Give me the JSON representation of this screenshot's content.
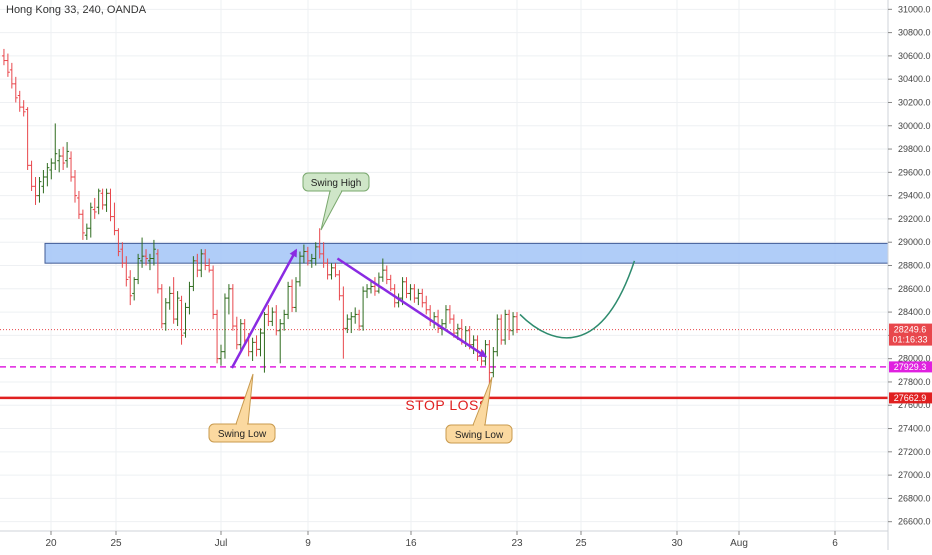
{
  "chart_data": {
    "type": "candlestick",
    "title": "Hong Kong 33, 240, OANDA",
    "y_range": [
      26520,
      31080
    ],
    "x_range": [
      0,
      900
    ],
    "y_ticks": [
      31000,
      30800,
      30600,
      30400,
      30200,
      30000,
      29800,
      29600,
      29400,
      29200,
      29000,
      28800,
      28600,
      28400,
      28200,
      28000,
      27800,
      27600,
      27400,
      27200,
      27000,
      26800,
      26600
    ],
    "y_tick_labels": [
      "31000.0",
      "30800.0",
      "30600.0",
      "30400.0",
      "30200.0",
      "30000.0",
      "29800.0",
      "29600.0",
      "29400.0",
      "29200.0",
      "29000.0",
      "28800.0",
      "28600.0",
      "28400.0",
      "28200.0",
      "28000.0",
      "27800.0",
      "27600.0",
      "27400.0",
      "27200.0",
      "27000.0",
      "26800.0",
      "26600.0"
    ],
    "x_ticks": [
      {
        "label": "20",
        "x": 51
      },
      {
        "label": "25",
        "x": 116
      },
      {
        "label": "Jul",
        "x": 221
      },
      {
        "label": "9",
        "x": 308
      },
      {
        "label": "16",
        "x": 411
      },
      {
        "label": "23",
        "x": 517
      },
      {
        "label": "25",
        "x": 581
      },
      {
        "label": "30",
        "x": 677
      },
      {
        "label": "Aug",
        "x": 739
      },
      {
        "label": "6",
        "x": 835
      }
    ],
    "candles": [
      {
        "x": 4,
        "o": 30600,
        "h": 30660,
        "l": 30520,
        "c": 30560
      },
      {
        "x": 8,
        "o": 30560,
        "h": 30620,
        "l": 30420,
        "c": 30460
      },
      {
        "x": 12,
        "o": 30480,
        "h": 30540,
        "l": 30320,
        "c": 30360
      },
      {
        "x": 16,
        "o": 30360,
        "h": 30420,
        "l": 30200,
        "c": 30240
      },
      {
        "x": 20,
        "o": 30260,
        "h": 30300,
        "l": 30120,
        "c": 30160
      },
      {
        "x": 24,
        "o": 30160,
        "h": 30220,
        "l": 30080,
        "c": 30120
      },
      {
        "x": 28,
        "o": 30140,
        "h": 30160,
        "l": 29620,
        "c": 29660
      },
      {
        "x": 32,
        "o": 29660,
        "h": 29700,
        "l": 29440,
        "c": 29480
      },
      {
        "x": 36,
        "o": 29480,
        "h": 29560,
        "l": 29320,
        "c": 29400
      },
      {
        "x": 40,
        "o": 29400,
        "h": 29560,
        "l": 29340,
        "c": 29520
      },
      {
        "x": 44,
        "o": 29480,
        "h": 29620,
        "l": 29420,
        "c": 29560
      },
      {
        "x": 48,
        "o": 29560,
        "h": 29680,
        "l": 29480,
        "c": 29640
      },
      {
        "x": 52,
        "o": 29620,
        "h": 29720,
        "l": 29540,
        "c": 29680
      },
      {
        "x": 56,
        "o": 29680,
        "h": 30020,
        "l": 29620,
        "c": 29760
      },
      {
        "x": 60,
        "o": 29700,
        "h": 29800,
        "l": 29600,
        "c": 29740
      },
      {
        "x": 64,
        "o": 29740,
        "h": 29820,
        "l": 29620,
        "c": 29680
      },
      {
        "x": 68,
        "o": 29700,
        "h": 29860,
        "l": 29640,
        "c": 29780
      },
      {
        "x": 72,
        "o": 29720,
        "h": 29780,
        "l": 29520,
        "c": 29560
      },
      {
        "x": 76,
        "o": 29560,
        "h": 29620,
        "l": 29340,
        "c": 29400
      },
      {
        "x": 80,
        "o": 29380,
        "h": 29440,
        "l": 29200,
        "c": 29240
      },
      {
        "x": 84,
        "o": 29240,
        "h": 29280,
        "l": 29020,
        "c": 29080
      },
      {
        "x": 88,
        "o": 29060,
        "h": 29160,
        "l": 29020,
        "c": 29120
      },
      {
        "x": 92,
        "o": 29120,
        "h": 29340,
        "l": 29040,
        "c": 29300
      },
      {
        "x": 96,
        "o": 29280,
        "h": 29380,
        "l": 29200,
        "c": 29260
      },
      {
        "x": 100,
        "o": 29300,
        "h": 29460,
        "l": 29240,
        "c": 29440
      },
      {
        "x": 104,
        "o": 29420,
        "h": 29460,
        "l": 29280,
        "c": 29320
      },
      {
        "x": 108,
        "o": 29320,
        "h": 29460,
        "l": 29260,
        "c": 29420
      },
      {
        "x": 112,
        "o": 29420,
        "h": 29460,
        "l": 29180,
        "c": 29220
      },
      {
        "x": 116,
        "o": 29220,
        "h": 29340,
        "l": 29060,
        "c": 29100
      },
      {
        "x": 120,
        "o": 29100,
        "h": 29120,
        "l": 28880,
        "c": 28920
      },
      {
        "x": 124,
        "o": 28940,
        "h": 29000,
        "l": 28780,
        "c": 28820
      },
      {
        "x": 128,
        "o": 28820,
        "h": 28880,
        "l": 28620,
        "c": 28680
      },
      {
        "x": 132,
        "o": 28700,
        "h": 28760,
        "l": 28460,
        "c": 28540
      },
      {
        "x": 136,
        "o": 28560,
        "h": 28700,
        "l": 28500,
        "c": 28680
      },
      {
        "x": 140,
        "o": 28680,
        "h": 28900,
        "l": 28640,
        "c": 28860
      },
      {
        "x": 144,
        "o": 28840,
        "h": 29040,
        "l": 28780,
        "c": 28880
      },
      {
        "x": 148,
        "o": 28880,
        "h": 28940,
        "l": 28800,
        "c": 28860
      },
      {
        "x": 152,
        "o": 28840,
        "h": 28900,
        "l": 28760,
        "c": 28860
      },
      {
        "x": 156,
        "o": 28860,
        "h": 29020,
        "l": 28800,
        "c": 28940
      },
      {
        "x": 160,
        "o": 28900,
        "h": 28940,
        "l": 28560,
        "c": 28600
      },
      {
        "x": 164,
        "o": 28600,
        "h": 28640,
        "l": 28260,
        "c": 28300
      },
      {
        "x": 168,
        "o": 28300,
        "h": 28520,
        "l": 28240,
        "c": 28480
      },
      {
        "x": 172,
        "o": 28480,
        "h": 28620,
        "l": 28420,
        "c": 28560
      },
      {
        "x": 176,
        "o": 28560,
        "h": 28700,
        "l": 28300,
        "c": 28340
      },
      {
        "x": 180,
        "o": 28340,
        "h": 28580,
        "l": 28280,
        "c": 28520
      },
      {
        "x": 184,
        "o": 28500,
        "h": 28540,
        "l": 28120,
        "c": 28200
      },
      {
        "x": 188,
        "o": 28220,
        "h": 28480,
        "l": 28180,
        "c": 28440
      },
      {
        "x": 192,
        "o": 28440,
        "h": 28660,
        "l": 28380,
        "c": 28620
      },
      {
        "x": 196,
        "o": 28620,
        "h": 28880,
        "l": 28580,
        "c": 28840
      },
      {
        "x": 200,
        "o": 28840,
        "h": 28900,
        "l": 28700,
        "c": 28760
      },
      {
        "x": 204,
        "o": 28760,
        "h": 28940,
        "l": 28700,
        "c": 28900
      },
      {
        "x": 208,
        "o": 28900,
        "h": 28940,
        "l": 28760,
        "c": 28800
      },
      {
        "x": 212,
        "o": 28800,
        "h": 28860,
        "l": 28740,
        "c": 28760
      },
      {
        "x": 216,
        "o": 28760,
        "h": 28800,
        "l": 28340,
        "c": 28380
      },
      {
        "x": 220,
        "o": 28380,
        "h": 28420,
        "l": 27960,
        "c": 28000
      },
      {
        "x": 224,
        "o": 28000,
        "h": 28120,
        "l": 27940,
        "c": 28060
      },
      {
        "x": 228,
        "o": 28060,
        "h": 28560,
        "l": 28000,
        "c": 28520
      },
      {
        "x": 232,
        "o": 28520,
        "h": 28640,
        "l": 28380,
        "c": 28600
      },
      {
        "x": 236,
        "o": 28600,
        "h": 28640,
        "l": 28240,
        "c": 28280
      },
      {
        "x": 240,
        "o": 28280,
        "h": 28360,
        "l": 28080,
        "c": 28120
      },
      {
        "x": 244,
        "o": 28120,
        "h": 28340,
        "l": 28060,
        "c": 28300
      },
      {
        "x": 248,
        "o": 28300,
        "h": 28340,
        "l": 28120,
        "c": 28160
      },
      {
        "x": 252,
        "o": 28160,
        "h": 28220,
        "l": 28020,
        "c": 28060
      },
      {
        "x": 256,
        "o": 28060,
        "h": 28180,
        "l": 27980,
        "c": 28140
      },
      {
        "x": 260,
        "o": 28140,
        "h": 28200,
        "l": 28020,
        "c": 28080
      },
      {
        "x": 264,
        "o": 28080,
        "h": 28260,
        "l": 28020,
        "c": 28220
      },
      {
        "x": 268,
        "o": 28220,
        "h": 28400,
        "l": 27880,
        "c": 28380
      },
      {
        "x": 272,
        "o": 28380,
        "h": 28460,
        "l": 28280,
        "c": 28320
      },
      {
        "x": 276,
        "o": 28320,
        "h": 28440,
        "l": 28280,
        "c": 28400
      },
      {
        "x": 280,
        "o": 28400,
        "h": 28460,
        "l": 28200,
        "c": 28240
      },
      {
        "x": 284,
        "o": 28240,
        "h": 28340,
        "l": 27960,
        "c": 28300
      },
      {
        "x": 288,
        "o": 28300,
        "h": 28420,
        "l": 28240,
        "c": 28380
      },
      {
        "x": 292,
        "o": 28380,
        "h": 28660,
        "l": 28340,
        "c": 28620
      },
      {
        "x": 296,
        "o": 28620,
        "h": 28680,
        "l": 28400,
        "c": 28440
      },
      {
        "x": 300,
        "o": 28440,
        "h": 28700,
        "l": 28400,
        "c": 28660
      },
      {
        "x": 304,
        "o": 28660,
        "h": 28920,
        "l": 28620,
        "c": 28880
      },
      {
        "x": 308,
        "o": 28880,
        "h": 28980,
        "l": 28820,
        "c": 28920
      },
      {
        "x": 312,
        "o": 28920,
        "h": 28960,
        "l": 28800,
        "c": 28840
      },
      {
        "x": 316,
        "o": 28840,
        "h": 28900,
        "l": 28780,
        "c": 28860
      },
      {
        "x": 320,
        "o": 28860,
        "h": 29000,
        "l": 28800,
        "c": 28960
      },
      {
        "x": 324,
        "o": 28960,
        "h": 29120,
        "l": 28860,
        "c": 28900
      },
      {
        "x": 328,
        "o": 28900,
        "h": 29000,
        "l": 28780,
        "c": 28820
      },
      {
        "x": 332,
        "o": 28820,
        "h": 28860,
        "l": 28680,
        "c": 28720
      },
      {
        "x": 336,
        "o": 28720,
        "h": 28820,
        "l": 28680,
        "c": 28780
      },
      {
        "x": 340,
        "o": 28780,
        "h": 28820,
        "l": 28700,
        "c": 28720
      },
      {
        "x": 344,
        "o": 28720,
        "h": 28760,
        "l": 28500,
        "c": 28540
      },
      {
        "x": 348,
        "o": 28540,
        "h": 28620,
        "l": 28000,
        "c": 28260
      },
      {
        "x": 352,
        "o": 28260,
        "h": 28380,
        "l": 28220,
        "c": 28340
      },
      {
        "x": 356,
        "o": 28340,
        "h": 28400,
        "l": 28220,
        "c": 28360
      },
      {
        "x": 360,
        "o": 28360,
        "h": 28440,
        "l": 28300,
        "c": 28380
      },
      {
        "x": 364,
        "o": 28380,
        "h": 28420,
        "l": 28240,
        "c": 28280
      },
      {
        "x": 368,
        "o": 28280,
        "h": 28620,
        "l": 28240,
        "c": 28580
      },
      {
        "x": 372,
        "o": 28580,
        "h": 28640,
        "l": 28520,
        "c": 28600
      },
      {
        "x": 376,
        "o": 28600,
        "h": 28680,
        "l": 28560,
        "c": 28620
      },
      {
        "x": 380,
        "o": 28620,
        "h": 28700,
        "l": 28540,
        "c": 28580
      },
      {
        "x": 384,
        "o": 28580,
        "h": 28740,
        "l": 28560,
        "c": 28700
      },
      {
        "x": 388,
        "o": 28700,
        "h": 28860,
        "l": 28660,
        "c": 28760
      },
      {
        "x": 392,
        "o": 28760,
        "h": 28800,
        "l": 28640,
        "c": 28680
      },
      {
        "x": 396,
        "o": 28680,
        "h": 28720,
        "l": 28580,
        "c": 28600
      },
      {
        "x": 400,
        "o": 28600,
        "h": 28640,
        "l": 28440,
        "c": 28480
      },
      {
        "x": 404,
        "o": 28480,
        "h": 28560,
        "l": 28440,
        "c": 28520
      },
      {
        "x": 408,
        "o": 28520,
        "h": 28700,
        "l": 28460,
        "c": 28660
      },
      {
        "x": 412,
        "o": 28660,
        "h": 28700,
        "l": 28520,
        "c": 28560
      },
      {
        "x": 416,
        "o": 28560,
        "h": 28640,
        "l": 28500,
        "c": 28600
      },
      {
        "x": 420,
        "o": 28600,
        "h": 28640,
        "l": 28480,
        "c": 28520
      },
      {
        "x": 424,
        "o": 28520,
        "h": 28600,
        "l": 28460,
        "c": 28560
      },
      {
        "x": 428,
        "o": 28560,
        "h": 28600,
        "l": 28440,
        "c": 28480
      },
      {
        "x": 432,
        "o": 28480,
        "h": 28540,
        "l": 28380,
        "c": 28420
      },
      {
        "x": 436,
        "o": 28420,
        "h": 28460,
        "l": 28280,
        "c": 28320
      },
      {
        "x": 440,
        "o": 28320,
        "h": 28400,
        "l": 28260,
        "c": 28360
      },
      {
        "x": 444,
        "o": 28360,
        "h": 28420,
        "l": 28220,
        "c": 28260
      },
      {
        "x": 448,
        "o": 28260,
        "h": 28340,
        "l": 28200,
        "c": 28300
      },
      {
        "x": 452,
        "o": 28300,
        "h": 28460,
        "l": 28260,
        "c": 28420
      },
      {
        "x": 456,
        "o": 28420,
        "h": 28460,
        "l": 28300,
        "c": 28340
      },
      {
        "x": 460,
        "o": 28340,
        "h": 28380,
        "l": 28180,
        "c": 28220
      },
      {
        "x": 464,
        "o": 28220,
        "h": 28300,
        "l": 28160,
        "c": 28260
      },
      {
        "x": 468,
        "o": 28260,
        "h": 28340,
        "l": 28120,
        "c": 28140
      },
      {
        "x": 472,
        "o": 28140,
        "h": 28280,
        "l": 28100,
        "c": 28240
      },
      {
        "x": 476,
        "o": 28240,
        "h": 28280,
        "l": 28080,
        "c": 28120
      },
      {
        "x": 480,
        "o": 28120,
        "h": 28200,
        "l": 28040,
        "c": 28160
      },
      {
        "x": 484,
        "o": 28160,
        "h": 28200,
        "l": 27980,
        "c": 28020
      },
      {
        "x": 488,
        "o": 28020,
        "h": 28080,
        "l": 27940,
        "c": 27980
      },
      {
        "x": 492,
        "o": 27980,
        "h": 28160,
        "l": 27940,
        "c": 28120
      },
      {
        "x": 496,
        "o": 28120,
        "h": 28160,
        "l": 27780,
        "c": 27880
      },
      {
        "x": 500,
        "o": 27880,
        "h": 28100,
        "l": 27840,
        "c": 28060
      },
      {
        "x": 504,
        "o": 28060,
        "h": 28380,
        "l": 28020,
        "c": 28340
      },
      {
        "x": 508,
        "o": 28340,
        "h": 28380,
        "l": 28120,
        "c": 28160
      },
      {
        "x": 512,
        "o": 28160,
        "h": 28420,
        "l": 28120,
        "c": 28380
      },
      {
        "x": 516,
        "o": 28380,
        "h": 28420,
        "l": 28160,
        "c": 28240
      },
      {
        "x": 520,
        "o": 28240,
        "h": 28400,
        "l": 28200,
        "c": 28360
      },
      {
        "x": 524,
        "o": 28360,
        "h": 28400,
        "l": 28220,
        "c": 28250
      }
    ],
    "resistance_zone": {
      "top": 28990,
      "bottom": 28820,
      "x_start": 45,
      "x_end": 888,
      "color": "#a8c8f8"
    },
    "current_price_line": {
      "value": 28249.6,
      "label": "28249.6",
      "countdown": "01:16:33",
      "color": "#e8474c"
    },
    "support_line": {
      "value": 27929.3,
      "label": "27929.3",
      "color": "#e020e0"
    },
    "stop_loss_line": {
      "value": 27662.9,
      "label": "27662.9",
      "color": "#e02020",
      "text": "STOP LOSS"
    },
    "projection_curve": {
      "color": "#2e8b6e"
    },
    "arrows_color": "#8a2be2",
    "up_color": "#2e6b1e",
    "down_color": "#e8474c",
    "callouts": [
      {
        "id": "swing-high",
        "text": "Swing High"
      },
      {
        "id": "swing-low-1",
        "text": "Swing Low"
      },
      {
        "id": "swing-low-2",
        "text": "Swing Low"
      }
    ]
  }
}
